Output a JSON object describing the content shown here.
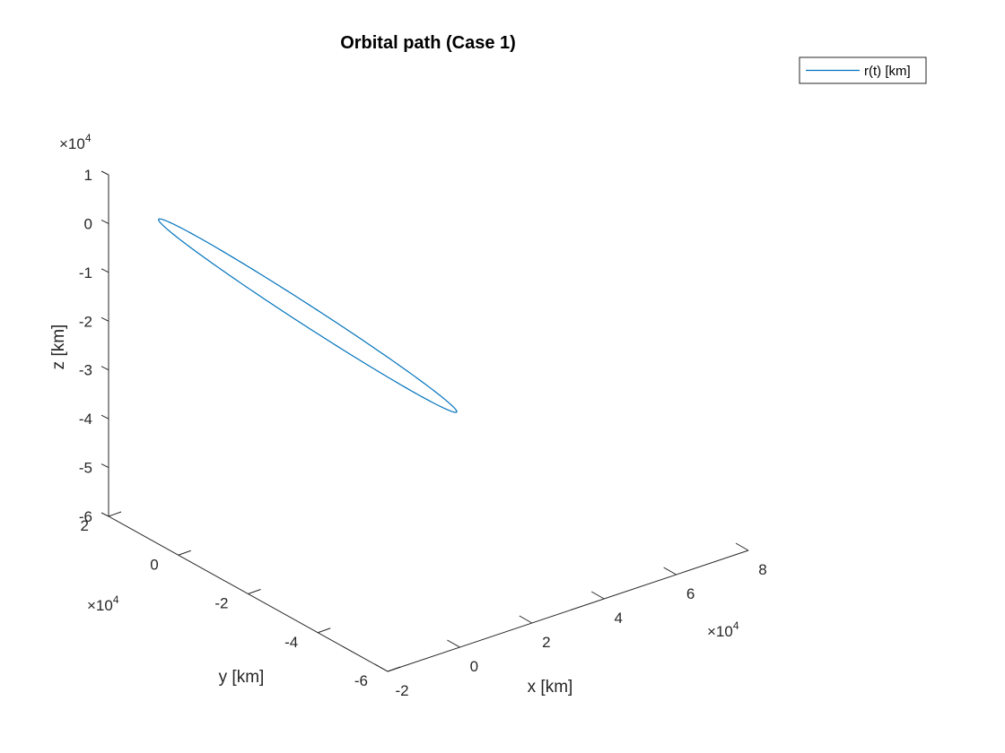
{
  "chart_data": {
    "type": "line",
    "title": "Orbital path (Case 1)",
    "xlabel": "x [km]",
    "ylabel": "y [km]",
    "zlabel": "z [km]",
    "x_ticks": [
      "-2",
      "0",
      "2",
      "4",
      "6",
      "8"
    ],
    "y_ticks": [
      "2",
      "0",
      "-2",
      "-4",
      "-6"
    ],
    "z_ticks": [
      "1",
      "0",
      "-1",
      "-2",
      "-3",
      "-4",
      "-5",
      "-6"
    ],
    "x_multiplier": "×10",
    "y_multiplier": "×10",
    "z_multiplier": "×10",
    "multiplier_exponent": "4",
    "xlim": [
      -2,
      8
    ],
    "ylim": [
      -6,
      2
    ],
    "zlim": [
      -6,
      1
    ],
    "legend_placement": "top-right",
    "series": [
      {
        "name": "r(t) [km]",
        "color": "#0072BD",
        "orbit_endpoints": {
          "start": {
            "x": -1.0,
            "y": 1.6,
            "z": 0.0
          },
          "end": {
            "x": 6.2,
            "y": 0.5,
            "z": -5.3
          }
        }
      }
    ]
  }
}
